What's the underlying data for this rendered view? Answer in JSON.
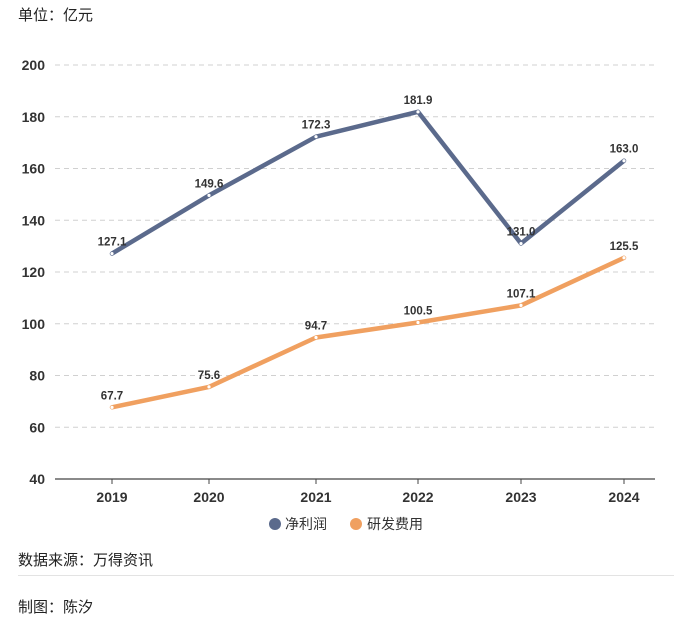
{
  "unit_label": "单位：亿元",
  "source": "数据来源：万得资讯",
  "credit": "制图：陈汐",
  "chart_data": {
    "type": "line",
    "x": [
      "2019",
      "2020",
      "2021",
      "2022",
      "2023",
      "2024"
    ],
    "ylim": [
      40,
      200
    ],
    "yticks": [
      40,
      60,
      80,
      100,
      120,
      140,
      160,
      180,
      200
    ],
    "grid": true,
    "legend_position": "bottom-center",
    "series": [
      {
        "name": "净利润",
        "color": "#5b6a8c",
        "values": [
          127.1,
          149.6,
          172.3,
          181.9,
          131.0,
          163.0
        ],
        "labels": [
          "127.1",
          "149.6",
          "172.3",
          "181.9",
          "131.0",
          "163.0"
        ]
      },
      {
        "name": "研发费用",
        "color": "#f0a060",
        "values": [
          67.7,
          75.6,
          94.7,
          100.5,
          107.1,
          125.5
        ],
        "labels": [
          "67.7",
          "75.6",
          "94.7",
          "100.5",
          "107.1",
          "125.5"
        ]
      }
    ]
  }
}
